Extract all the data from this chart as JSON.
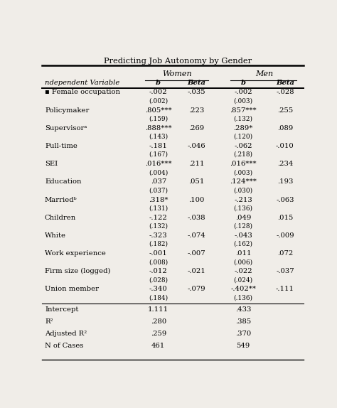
{
  "title": "Predicting Job Autonomy by Gender",
  "bg_color": "#f0ede8",
  "font_size": 7.2,
  "rows": [
    {
      "var": "▪ Female occupation",
      "wb": "-.002",
      "wb2": "(.002)",
      "wbeta": "-.035",
      "mb": "-.002",
      "mb2": "(.003)",
      "mbeta": "-.028"
    },
    {
      "var": "Policymaker",
      "wb": ".805***",
      "wb2": "(.159)",
      "wbeta": ".223",
      "mb": ".857***",
      "mb2": "(.132)",
      "mbeta": ".255"
    },
    {
      "var": "Supervisorᵃ",
      "wb": ".888***",
      "wb2": "(.143)",
      "wbeta": ".269",
      "mb": ".289*",
      "mb2": "(.120)",
      "mbeta": ".089"
    },
    {
      "var": "Full-time",
      "wb": "-.181",
      "wb2": "(.167)",
      "wbeta": "-.046",
      "mb": "-.062",
      "mb2": "(.218)",
      "mbeta": "-.010"
    },
    {
      "var": "SEI",
      "wb": ".016***",
      "wb2": "(.004)",
      "wbeta": ".211",
      "mb": ".016***",
      "mb2": "(.003)",
      "mbeta": ".234"
    },
    {
      "var": "Education",
      "wb": ".037",
      "wb2": "(.037)",
      "wbeta": ".051",
      "mb": ".124***",
      "mb2": "(.030)",
      "mbeta": ".193"
    },
    {
      "var": "Marriedᵇ",
      "wb": ".318*",
      "wb2": "(.131)",
      "wbeta": ".100",
      "mb": "-.213",
      "mb2": "(.136)",
      "mbeta": "-.063"
    },
    {
      "var": "Children",
      "wb": "-.122",
      "wb2": "(.132)",
      "wbeta": "-.038",
      "mb": ".049",
      "mb2": "(.128)",
      "mbeta": ".015"
    },
    {
      "var": "White",
      "wb": "-.323",
      "wb2": "(.182)",
      "wbeta": "-.074",
      "mb": "-.043",
      "mb2": "(.162)",
      "mbeta": "-.009"
    },
    {
      "var": "Work experience",
      "wb": "-.001",
      "wb2": "(.008)",
      "wbeta": "-.007",
      "mb": ".011",
      "mb2": "(.006)",
      "mbeta": ".072"
    },
    {
      "var": "Firm size (logged)",
      "wb": "-.012",
      "wb2": "(.028)",
      "wbeta": "-.021",
      "mb": "-.022",
      "mb2": "(.024)",
      "mbeta": "-.037"
    },
    {
      "var": "Union member",
      "wb": "-.340",
      "wb2": "(.184)",
      "wbeta": "-.079",
      "mb": "-.402**",
      "mb2": "(.136)",
      "mbeta": "-.111"
    }
  ],
  "footer_rows": [
    {
      "label": "Intercept",
      "wval": "1.111",
      "mval": ".433"
    },
    {
      "label": "R²",
      "wval": ".280",
      "mval": ".385"
    },
    {
      "label": "Adjusted R²",
      "wval": ".259",
      "mval": ".370"
    },
    {
      "label": "N of Cases",
      "wval": "461",
      "mval": "549"
    }
  ]
}
